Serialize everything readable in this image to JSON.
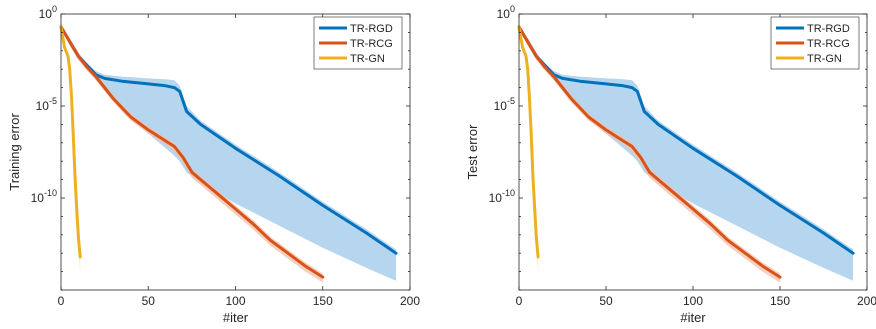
{
  "chart_data": [
    {
      "type": "line",
      "title": "",
      "xlabel": "#iter",
      "ylabel": "Training error",
      "xlim": [
        0,
        200
      ],
      "ylim_exp": [
        -15,
        0
      ],
      "yscale": "log",
      "grid": false,
      "legend_position": "top-right",
      "x_ticks": [
        "0",
        "50",
        "100",
        "150",
        "200"
      ],
      "y_ticks": [
        {
          "base": "10",
          "exp": "0"
        },
        {
          "base": "10",
          "exp": "-5"
        },
        {
          "base": "10",
          "exp": "-10"
        }
      ],
      "series": [
        {
          "name": "TR-RGD",
          "color": "#0072BD",
          "band_color": "#9ec8ea",
          "x": [
            0,
            5,
            10,
            15,
            20,
            25,
            35,
            50,
            60,
            65,
            68,
            72,
            80,
            100,
            125,
            150,
            175,
            192
          ],
          "y_exp": [
            -0.7,
            -1.5,
            -2.3,
            -2.8,
            -3.3,
            -3.5,
            -3.65,
            -3.8,
            -3.9,
            -4.0,
            -4.2,
            -5.3,
            -6.0,
            -7.3,
            -8.8,
            -10.4,
            -11.9,
            -13.0
          ],
          "band_low_exp": [
            -0.8,
            -1.7,
            -2.5,
            -3.0,
            -3.6,
            -4.2,
            -5.2,
            -6.5,
            -7.3,
            -7.7,
            -8.0,
            -8.6,
            -9.2,
            -10.3,
            -11.5,
            -12.7,
            -13.8,
            -14.5
          ],
          "band_high_exp": [
            -0.6,
            -1.4,
            -2.2,
            -2.7,
            -3.1,
            -3.3,
            -3.4,
            -3.5,
            -3.55,
            -3.6,
            -3.9,
            -5.0,
            -5.8,
            -7.1,
            -8.6,
            -10.2,
            -11.7,
            -12.8
          ]
        },
        {
          "name": "TR-RCG",
          "color": "#D95319",
          "band_color": "#f3c0a8",
          "x": [
            0,
            5,
            10,
            15,
            20,
            25,
            30,
            40,
            50,
            60,
            65,
            70,
            75,
            80,
            90,
            100,
            110,
            120,
            130,
            140,
            150
          ],
          "y_exp": [
            -0.7,
            -1.5,
            -2.3,
            -2.9,
            -3.4,
            -4.0,
            -4.6,
            -5.6,
            -6.3,
            -6.9,
            -7.2,
            -7.8,
            -8.6,
            -9.0,
            -9.8,
            -10.6,
            -11.4,
            -12.3,
            -13.0,
            -13.7,
            -14.3
          ],
          "band_low_exp": [
            -0.8,
            -1.7,
            -2.5,
            -3.1,
            -3.6,
            -4.2,
            -4.8,
            -5.8,
            -6.5,
            -7.1,
            -7.5,
            -8.1,
            -8.9,
            -9.3,
            -10.1,
            -10.9,
            -11.7,
            -12.6,
            -13.3,
            -14.0,
            -14.6
          ],
          "band_high_exp": [
            -0.6,
            -1.3,
            -2.1,
            -2.7,
            -3.2,
            -3.8,
            -4.4,
            -5.4,
            -6.1,
            -6.7,
            -7.0,
            -7.6,
            -8.4,
            -8.8,
            -9.6,
            -10.4,
            -11.2,
            -12.1,
            -12.8,
            -13.5,
            -14.1
          ]
        },
        {
          "name": "TR-GN",
          "color": "#EDB120",
          "band_color": "#f8dfa0",
          "x": [
            0,
            2,
            4,
            5,
            6,
            7,
            8,
            9,
            10,
            11
          ],
          "y_exp": [
            -0.7,
            -1.8,
            -2.3,
            -3.0,
            -4.5,
            -6.5,
            -8.8,
            -10.6,
            -12.2,
            -13.2
          ],
          "band_low_exp": [
            -0.8,
            -1.9,
            -2.5,
            -3.2,
            -4.8,
            -6.9,
            -9.3,
            -11.2,
            -12.9,
            -14.0
          ],
          "band_high_exp": [
            -0.6,
            -1.7,
            -2.2,
            -2.8,
            -4.2,
            -6.2,
            -8.4,
            -10.2,
            -11.8,
            -12.9
          ]
        }
      ]
    },
    {
      "type": "line",
      "title": "",
      "xlabel": "#iter",
      "ylabel": "Test error",
      "xlim": [
        0,
        200
      ],
      "ylim_exp": [
        -15,
        0
      ],
      "yscale": "log",
      "grid": false,
      "legend_position": "top-right",
      "x_ticks": [
        "0",
        "50",
        "100",
        "150",
        "200"
      ],
      "y_ticks": [
        {
          "base": "10",
          "exp": "0"
        },
        {
          "base": "10",
          "exp": "-5"
        },
        {
          "base": "10",
          "exp": "-10"
        }
      ],
      "series": [
        {
          "name": "TR-RGD",
          "color": "#0072BD",
          "band_color": "#9ec8ea",
          "x": [
            0,
            5,
            10,
            15,
            20,
            25,
            35,
            50,
            60,
            65,
            68,
            72,
            80,
            100,
            125,
            150,
            175,
            192
          ],
          "y_exp": [
            -0.7,
            -1.5,
            -2.3,
            -2.8,
            -3.3,
            -3.5,
            -3.65,
            -3.8,
            -3.9,
            -4.0,
            -4.2,
            -5.3,
            -6.0,
            -7.3,
            -8.8,
            -10.4,
            -11.9,
            -13.0
          ],
          "band_low_exp": [
            -0.8,
            -1.7,
            -2.5,
            -3.0,
            -3.6,
            -4.2,
            -5.2,
            -6.5,
            -7.3,
            -7.7,
            -8.0,
            -8.6,
            -9.2,
            -10.3,
            -11.5,
            -12.7,
            -13.8,
            -14.5
          ],
          "band_high_exp": [
            -0.6,
            -1.4,
            -2.2,
            -2.7,
            -3.1,
            -3.3,
            -3.4,
            -3.5,
            -3.55,
            -3.6,
            -3.9,
            -5.0,
            -5.8,
            -7.1,
            -8.6,
            -10.2,
            -11.7,
            -12.8
          ]
        },
        {
          "name": "TR-RCG",
          "color": "#D95319",
          "band_color": "#f3c0a8",
          "x": [
            0,
            5,
            10,
            15,
            20,
            25,
            30,
            40,
            50,
            60,
            65,
            70,
            75,
            80,
            90,
            100,
            110,
            120,
            130,
            140,
            150
          ],
          "y_exp": [
            -0.7,
            -1.5,
            -2.3,
            -2.9,
            -3.4,
            -4.0,
            -4.6,
            -5.6,
            -6.3,
            -6.9,
            -7.2,
            -7.8,
            -8.6,
            -9.0,
            -9.8,
            -10.6,
            -11.4,
            -12.3,
            -13.0,
            -13.7,
            -14.3
          ],
          "band_low_exp": [
            -0.8,
            -1.7,
            -2.5,
            -3.1,
            -3.6,
            -4.2,
            -4.8,
            -5.8,
            -6.5,
            -7.1,
            -7.5,
            -8.1,
            -8.9,
            -9.3,
            -10.1,
            -10.9,
            -11.7,
            -12.6,
            -13.3,
            -14.0,
            -14.6
          ],
          "band_high_exp": [
            -0.6,
            -1.3,
            -2.1,
            -2.7,
            -3.2,
            -3.8,
            -4.4,
            -5.4,
            -6.1,
            -6.7,
            -7.0,
            -7.6,
            -8.4,
            -8.8,
            -9.6,
            -10.4,
            -11.2,
            -12.1,
            -12.8,
            -13.5,
            -14.1
          ]
        },
        {
          "name": "TR-GN",
          "color": "#EDB120",
          "band_color": "#f8dfa0",
          "x": [
            0,
            2,
            4,
            5,
            6,
            7,
            8,
            9,
            10,
            11
          ],
          "y_exp": [
            -0.7,
            -1.8,
            -2.3,
            -3.0,
            -4.5,
            -6.5,
            -8.8,
            -10.6,
            -12.2,
            -13.2
          ],
          "band_low_exp": [
            -0.8,
            -1.9,
            -2.5,
            -3.2,
            -4.8,
            -6.9,
            -9.3,
            -11.2,
            -12.9,
            -14.0
          ],
          "band_high_exp": [
            -0.6,
            -1.7,
            -2.2,
            -2.8,
            -4.2,
            -6.2,
            -8.4,
            -10.2,
            -11.8,
            -12.9
          ]
        }
      ]
    }
  ]
}
